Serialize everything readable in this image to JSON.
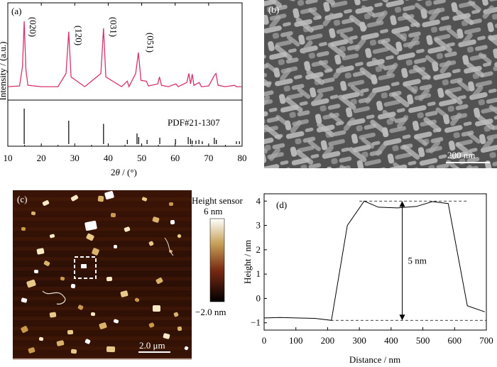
{
  "chart_data": [
    {
      "panel": "(a)",
      "type": "line",
      "xlabel": "2θ / (°)",
      "ylabel": "Intensity / (a.u.)",
      "xlim": [
        10,
        80
      ],
      "xticks": [
        10,
        20,
        30,
        40,
        50,
        60,
        70,
        80
      ],
      "series": [
        {
          "color": "#d6336c",
          "x": [
            10,
            13.5,
            14.4,
            14.9,
            15.4,
            16,
            20,
            25,
            27.4,
            28.2,
            28.9,
            33,
            37.8,
            38.6,
            39.3,
            44,
            45.7,
            46.2,
            48.2,
            49,
            49.8,
            51.4,
            52,
            54.8,
            55.3,
            55.9,
            58,
            60.2,
            60.9,
            63.5,
            64.1,
            64.6,
            65.1,
            65.6,
            67.2,
            67.8,
            70,
            71.7,
            72.2,
            72.8,
            75,
            77.7,
            78.3,
            80
          ],
          "y": [
            0.06,
            0.07,
            0.35,
            1.0,
            0.3,
            0.08,
            0.06,
            0.06,
            0.25,
            0.85,
            0.2,
            0.06,
            0.25,
            0.9,
            0.2,
            0.06,
            0.14,
            0.06,
            0.25,
            0.55,
            0.15,
            0.14,
            0.07,
            0.1,
            0.2,
            0.08,
            0.06,
            0.1,
            0.06,
            0.12,
            0.25,
            0.1,
            0.24,
            0.08,
            0.12,
            0.06,
            0.07,
            0.22,
            0.25,
            0.08,
            0.06,
            0.08,
            0.06,
            0.06
          ]
        }
      ],
      "reference_pattern": {
        "label": "PDF#21-1307",
        "positions": [
          14.9,
          28.2,
          38.6,
          45.7,
          48.6,
          49.1,
          51.6,
          55.4,
          60.1,
          63.9,
          64.6,
          65.1,
          66.2,
          67.1,
          68.1,
          71.7,
          72.3,
          78.3,
          79.2
        ],
        "intensities": [
          1.0,
          0.66,
          0.57,
          0.12,
          0.3,
          0.2,
          0.12,
          0.18,
          0.14,
          0.2,
          0.15,
          0.1,
          0.1,
          0.12,
          0.08,
          0.18,
          0.12,
          0.08,
          0.08
        ]
      },
      "annotations": [
        {
          "text": "(020)",
          "x": 15.7
        },
        {
          "text": "(120)",
          "x": 29.4
        },
        {
          "text": "(031)",
          "x": 39.8
        },
        {
          "text": "(051)",
          "x": 50.8
        }
      ]
    },
    {
      "panel": "(b)",
      "type": "image",
      "scale_bar": "200 nm"
    },
    {
      "panel": "(c)",
      "type": "heatmap",
      "scale_bar": "2.0 μm",
      "colorbar_title": "Height sensor",
      "colorbar_max": "6 nm",
      "colorbar_min": "−2.0 nm"
    },
    {
      "panel": "(d)",
      "type": "line",
      "xlabel": "Distance / nm",
      "ylabel": "Height / nm",
      "xlim": [
        0,
        700
      ],
      "ylim": [
        -1.3,
        4.3
      ],
      "xticks": [
        0,
        100,
        200,
        300,
        400,
        500,
        600,
        700
      ],
      "yticks": [
        -1,
        0,
        1,
        2,
        3,
        4
      ],
      "series": [
        {
          "color": "#000000",
          "x": [
            0,
            50,
            100,
            160,
            212,
            262,
            315,
            360,
            420,
            480,
            530,
            580,
            640,
            695
          ],
          "y": [
            -0.8,
            -0.78,
            -0.8,
            -0.82,
            -0.9,
            3.0,
            4.0,
            3.75,
            3.72,
            3.78,
            3.98,
            3.9,
            -0.3,
            -0.55
          ]
        }
      ],
      "reference_lines": [
        4.0,
        -0.9
      ],
      "annotation": {
        "text": "5 nm",
        "x": 435
      }
    }
  ]
}
